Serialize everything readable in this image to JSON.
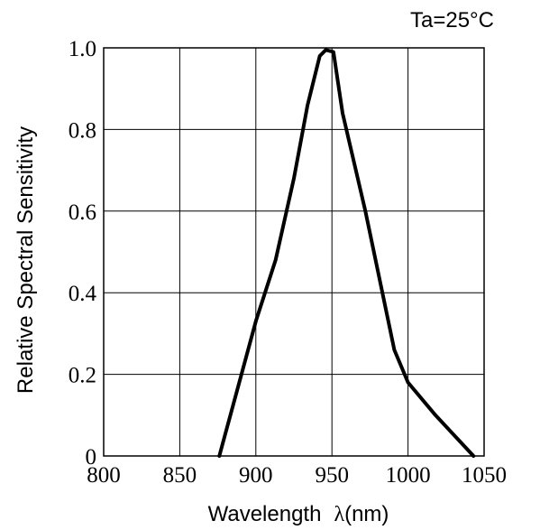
{
  "chart_data": {
    "type": "line",
    "annotation": "Ta=25°C",
    "xlabel": "Wavelength",
    "xlabel_symbol": "λ",
    "xlabel_unit": "(nm)",
    "ylabel": "Relative Spectral Sensitivity",
    "xlim": [
      800,
      1050
    ],
    "ylim": [
      0,
      1.0
    ],
    "x_ticks": [
      800,
      850,
      900,
      950,
      1000,
      1050
    ],
    "x_tick_labels": [
      "800",
      "850",
      "900",
      "950",
      "1000",
      "1050"
    ],
    "y_ticks": [
      0,
      0.2,
      0.4,
      0.6,
      0.8,
      1.0
    ],
    "y_tick_labels": [
      "0",
      "0.2",
      "0.4",
      "0.6",
      "0.8",
      "1.0"
    ],
    "grid": true,
    "series": [
      {
        "color": "#000000",
        "x": [
          876,
          900,
          913,
          925,
          934,
          942,
          946,
          951,
          957,
          972,
          991,
          1000,
          1018,
          1033,
          1043
        ],
        "y": [
          0.0,
          0.33,
          0.48,
          0.68,
          0.86,
          0.98,
          0.995,
          0.99,
          0.84,
          0.6,
          0.26,
          0.18,
          0.1,
          0.04,
          0.0
        ]
      }
    ]
  }
}
